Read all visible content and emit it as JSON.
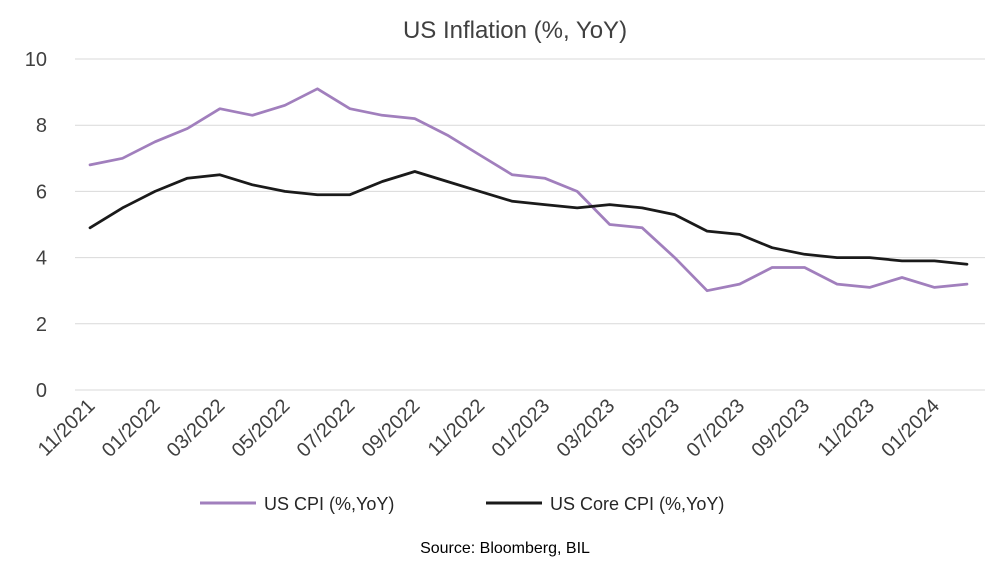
{
  "chart_data": {
    "type": "line",
    "title": "US Inflation (%, YoY)",
    "xlabel": "",
    "ylabel": "",
    "ylim": [
      0,
      10
    ],
    "yticks": [
      0,
      2,
      4,
      6,
      8,
      10
    ],
    "grid": true,
    "legend_position": "bottom",
    "x": [
      "11/2021",
      "12/2021",
      "01/2022",
      "02/2022",
      "03/2022",
      "04/2022",
      "05/2022",
      "06/2022",
      "07/2022",
      "08/2022",
      "09/2022",
      "10/2022",
      "11/2022",
      "12/2022",
      "01/2023",
      "02/2023",
      "03/2023",
      "04/2023",
      "05/2023",
      "06/2023",
      "07/2023",
      "08/2023",
      "09/2023",
      "10/2023",
      "11/2023",
      "12/2023",
      "01/2024",
      "02/2024"
    ],
    "x_tick_labels": [
      "11/2021",
      "01/2022",
      "03/2022",
      "05/2022",
      "07/2022",
      "09/2022",
      "11/2022",
      "01/2023",
      "03/2023",
      "05/2023",
      "07/2023",
      "09/2023",
      "11/2023",
      "01/2024"
    ],
    "series": [
      {
        "name": "US CPI (%,YoY)",
        "color": "#a17fbd",
        "values": [
          6.8,
          7.0,
          7.5,
          7.9,
          8.5,
          8.3,
          8.6,
          9.1,
          8.5,
          8.3,
          8.2,
          7.7,
          7.1,
          6.5,
          6.4,
          6.0,
          5.0,
          4.9,
          4.0,
          3.0,
          3.2,
          3.7,
          3.7,
          3.2,
          3.1,
          3.4,
          3.1,
          3.2
        ]
      },
      {
        "name": "US Core CPI (%,YoY)",
        "color": "#1a1a1a",
        "values": [
          4.9,
          5.5,
          6.0,
          6.4,
          6.5,
          6.2,
          6.0,
          5.9,
          5.9,
          6.3,
          6.6,
          6.3,
          6.0,
          5.7,
          5.6,
          5.5,
          5.6,
          5.5,
          5.3,
          4.8,
          4.7,
          4.3,
          4.1,
          4.0,
          4.0,
          3.9,
          3.9,
          3.8
        ]
      }
    ]
  },
  "source_note": "Source: Bloomberg, BIL"
}
